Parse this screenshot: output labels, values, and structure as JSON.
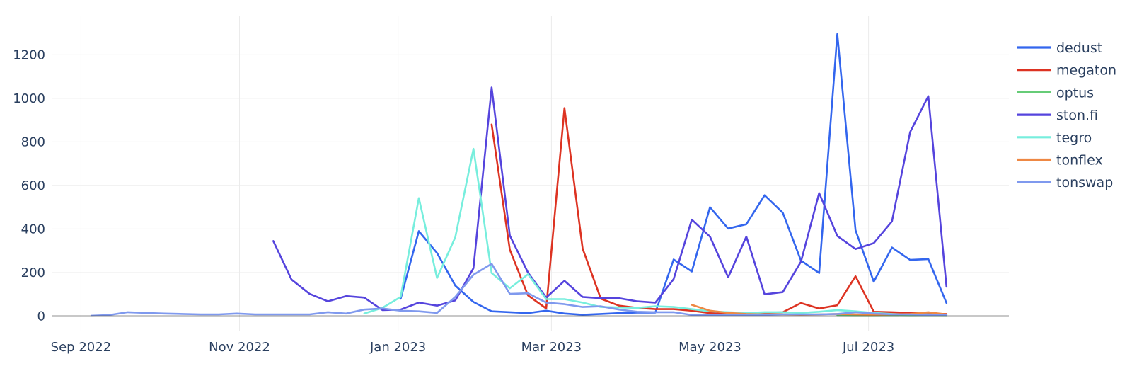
{
  "chart_data": {
    "type": "line",
    "title": "",
    "xlabel": "",
    "ylabel": "",
    "x_axis": {
      "type": "date",
      "range": [
        "2022-08-21",
        "2023-08-24"
      ],
      "ticks": [
        {
          "date": "2022-09-01",
          "label": "Sep 2022"
        },
        {
          "date": "2022-11-01",
          "label": "Nov 2022"
        },
        {
          "date": "2023-01-01",
          "label": "Jan 2023"
        },
        {
          "date": "2023-03-01",
          "label": "Mar 2023"
        },
        {
          "date": "2023-05-01",
          "label": "May 2023"
        },
        {
          "date": "2023-07-01",
          "label": "Jul 2023"
        }
      ]
    },
    "y_axis": {
      "range": [
        -70,
        1380
      ],
      "ticks": [
        0,
        200,
        400,
        600,
        800,
        1000,
        1200
      ],
      "grid": true
    },
    "legend": {
      "position": "right"
    },
    "series": [
      {
        "name": "dedust",
        "color": "#3366ee",
        "points": [
          [
            "2023-01-02",
            80
          ],
          [
            "2023-01-09",
            390
          ],
          [
            "2023-01-16",
            290
          ],
          [
            "2023-01-23",
            140
          ],
          [
            "2023-01-30",
            65
          ],
          [
            "2023-02-06",
            22
          ],
          [
            "2023-02-13",
            18
          ],
          [
            "2023-02-20",
            14
          ],
          [
            "2023-02-27",
            25
          ],
          [
            "2023-03-06",
            12
          ],
          [
            "2023-03-13",
            6
          ],
          [
            "2023-03-20",
            10
          ],
          [
            "2023-03-27",
            14
          ],
          [
            "2023-04-03",
            16
          ],
          [
            "2023-04-10",
            16
          ],
          [
            "2023-04-17",
            260
          ],
          [
            "2023-04-24",
            205
          ],
          [
            "2023-05-01",
            500
          ],
          [
            "2023-05-08",
            402
          ],
          [
            "2023-05-15",
            422
          ],
          [
            "2023-05-22",
            555
          ],
          [
            "2023-05-29",
            475
          ],
          [
            "2023-06-05",
            255
          ],
          [
            "2023-06-12",
            198
          ],
          [
            "2023-06-19",
            1295
          ],
          [
            "2023-06-26",
            395
          ],
          [
            "2023-07-03",
            158
          ],
          [
            "2023-07-10",
            315
          ],
          [
            "2023-07-17",
            258
          ],
          [
            "2023-07-24",
            262
          ],
          [
            "2023-07-31",
            60
          ]
        ]
      },
      {
        "name": "megaton",
        "color": "#dd3322",
        "points": [
          [
            "2023-02-06",
            880
          ],
          [
            "2023-02-13",
            305
          ],
          [
            "2023-02-20",
            95
          ],
          [
            "2023-02-27",
            35
          ],
          [
            "2023-03-06",
            955
          ],
          [
            "2023-03-13",
            310
          ],
          [
            "2023-03-20",
            80
          ],
          [
            "2023-03-27",
            48
          ],
          [
            "2023-04-03",
            38
          ],
          [
            "2023-04-10",
            32
          ],
          [
            "2023-04-17",
            32
          ],
          [
            "2023-04-24",
            25
          ],
          [
            "2023-05-01",
            14
          ],
          [
            "2023-05-08",
            12
          ],
          [
            "2023-05-15",
            12
          ],
          [
            "2023-05-22",
            15
          ],
          [
            "2023-05-29",
            18
          ],
          [
            "2023-06-05",
            60
          ],
          [
            "2023-06-12",
            35
          ],
          [
            "2023-06-19",
            50
          ],
          [
            "2023-06-26",
            183
          ],
          [
            "2023-07-03",
            20
          ],
          [
            "2023-07-10",
            18
          ],
          [
            "2023-07-17",
            15
          ],
          [
            "2023-07-24",
            12
          ],
          [
            "2023-07-31",
            10
          ]
        ]
      },
      {
        "name": "optus",
        "color": "#66cc77",
        "points": [
          [
            "2023-06-19",
            2
          ],
          [
            "2023-06-26",
            1
          ],
          [
            "2023-07-03",
            1
          ],
          [
            "2023-07-10",
            2
          ],
          [
            "2023-07-17",
            1
          ],
          [
            "2023-07-24",
            2
          ],
          [
            "2023-07-31",
            1
          ]
        ]
      },
      {
        "name": "ston.fi",
        "color": "#5544dd",
        "points": [
          [
            "2022-11-14",
            345
          ],
          [
            "2022-11-21",
            168
          ],
          [
            "2022-11-28",
            102
          ],
          [
            "2022-12-05",
            68
          ],
          [
            "2022-12-12",
            92
          ],
          [
            "2022-12-19",
            85
          ],
          [
            "2022-12-26",
            28
          ],
          [
            "2023-01-02",
            30
          ],
          [
            "2023-01-09",
            62
          ],
          [
            "2023-01-16",
            48
          ],
          [
            "2023-01-23",
            72
          ],
          [
            "2023-01-30",
            220
          ],
          [
            "2023-02-06",
            1050
          ],
          [
            "2023-02-13",
            370
          ],
          [
            "2023-02-20",
            200
          ],
          [
            "2023-02-27",
            85
          ],
          [
            "2023-03-06",
            162
          ],
          [
            "2023-03-13",
            88
          ],
          [
            "2023-03-20",
            82
          ],
          [
            "2023-03-27",
            82
          ],
          [
            "2023-04-03",
            68
          ],
          [
            "2023-04-10",
            62
          ],
          [
            "2023-04-17",
            170
          ],
          [
            "2023-04-24",
            443
          ],
          [
            "2023-05-01",
            365
          ],
          [
            "2023-05-08",
            178
          ],
          [
            "2023-05-15",
            365
          ],
          [
            "2023-05-22",
            100
          ],
          [
            "2023-05-29",
            110
          ],
          [
            "2023-06-05",
            250
          ],
          [
            "2023-06-12",
            565
          ],
          [
            "2023-06-19",
            368
          ],
          [
            "2023-06-26",
            308
          ],
          [
            "2023-07-03",
            335
          ],
          [
            "2023-07-10",
            435
          ],
          [
            "2023-07-17",
            845
          ],
          [
            "2023-07-24",
            1010
          ],
          [
            "2023-07-31",
            135
          ]
        ]
      },
      {
        "name": "tegro",
        "color": "#77eedd",
        "points": [
          [
            "2022-12-19",
            12
          ],
          [
            "2022-12-26",
            38
          ],
          [
            "2023-01-02",
            88
          ],
          [
            "2023-01-09",
            542
          ],
          [
            "2023-01-16",
            175
          ],
          [
            "2023-01-23",
            362
          ],
          [
            "2023-01-30",
            768
          ],
          [
            "2023-02-06",
            198
          ],
          [
            "2023-02-13",
            128
          ],
          [
            "2023-02-20",
            192
          ],
          [
            "2023-02-27",
            78
          ],
          [
            "2023-03-06",
            78
          ],
          [
            "2023-03-13",
            62
          ],
          [
            "2023-03-20",
            42
          ],
          [
            "2023-03-27",
            40
          ],
          [
            "2023-04-03",
            38
          ],
          [
            "2023-04-10",
            45
          ],
          [
            "2023-04-17",
            42
          ],
          [
            "2023-04-24",
            32
          ],
          [
            "2023-05-01",
            22
          ],
          [
            "2023-05-08",
            18
          ],
          [
            "2023-05-15",
            15
          ],
          [
            "2023-05-22",
            18
          ],
          [
            "2023-05-29",
            18
          ],
          [
            "2023-06-05",
            15
          ],
          [
            "2023-06-12",
            20
          ],
          [
            "2023-06-19",
            28
          ],
          [
            "2023-06-26",
            22
          ],
          [
            "2023-07-03",
            15
          ],
          [
            "2023-07-10",
            10
          ],
          [
            "2023-07-17",
            8
          ],
          [
            "2023-07-24",
            8
          ],
          [
            "2023-07-31",
            6
          ]
        ]
      },
      {
        "name": "tonflex",
        "color": "#ee8844",
        "points": [
          [
            "2023-04-24",
            52
          ],
          [
            "2023-05-01",
            25
          ],
          [
            "2023-05-08",
            15
          ],
          [
            "2023-05-15",
            10
          ],
          [
            "2023-05-22",
            8
          ],
          [
            "2023-05-29",
            8
          ],
          [
            "2023-06-05",
            6
          ],
          [
            "2023-06-12",
            8
          ],
          [
            "2023-06-19",
            10
          ],
          [
            "2023-06-26",
            8
          ],
          [
            "2023-07-03",
            6
          ],
          [
            "2023-07-10",
            8
          ],
          [
            "2023-07-17",
            10
          ],
          [
            "2023-07-24",
            18
          ],
          [
            "2023-07-31",
            8
          ]
        ]
      },
      {
        "name": "tonswap",
        "color": "#7f99ee",
        "points": [
          [
            "2022-09-05",
            2
          ],
          [
            "2022-09-12",
            5
          ],
          [
            "2022-09-19",
            18
          ],
          [
            "2022-09-26",
            15
          ],
          [
            "2022-10-03",
            12
          ],
          [
            "2022-10-10",
            10
          ],
          [
            "2022-10-17",
            8
          ],
          [
            "2022-10-24",
            8
          ],
          [
            "2022-10-31",
            12
          ],
          [
            "2022-11-07",
            8
          ],
          [
            "2022-11-14",
            8
          ],
          [
            "2022-11-21",
            8
          ],
          [
            "2022-11-28",
            8
          ],
          [
            "2022-12-05",
            18
          ],
          [
            "2022-12-12",
            12
          ],
          [
            "2022-12-19",
            30
          ],
          [
            "2022-12-26",
            35
          ],
          [
            "2023-01-02",
            25
          ],
          [
            "2023-01-09",
            22
          ],
          [
            "2023-01-16",
            15
          ],
          [
            "2023-01-23",
            88
          ],
          [
            "2023-01-30",
            190
          ],
          [
            "2023-02-06",
            240
          ],
          [
            "2023-02-13",
            102
          ],
          [
            "2023-02-20",
            105
          ],
          [
            "2023-02-27",
            62
          ],
          [
            "2023-03-06",
            55
          ],
          [
            "2023-03-13",
            42
          ],
          [
            "2023-03-20",
            45
          ],
          [
            "2023-03-27",
            30
          ],
          [
            "2023-04-03",
            20
          ],
          [
            "2023-04-10",
            18
          ],
          [
            "2023-04-17",
            18
          ],
          [
            "2023-04-24",
            5
          ],
          [
            "2023-05-01",
            5
          ],
          [
            "2023-05-08",
            5
          ],
          [
            "2023-05-15",
            5
          ],
          [
            "2023-05-22",
            5
          ],
          [
            "2023-05-29",
            8
          ],
          [
            "2023-06-05",
            8
          ],
          [
            "2023-06-12",
            8
          ],
          [
            "2023-06-19",
            10
          ],
          [
            "2023-06-26",
            18
          ],
          [
            "2023-07-03",
            12
          ],
          [
            "2023-07-10",
            8
          ],
          [
            "2023-07-17",
            8
          ],
          [
            "2023-07-24",
            5
          ],
          [
            "2023-07-31",
            5
          ]
        ]
      }
    ]
  }
}
